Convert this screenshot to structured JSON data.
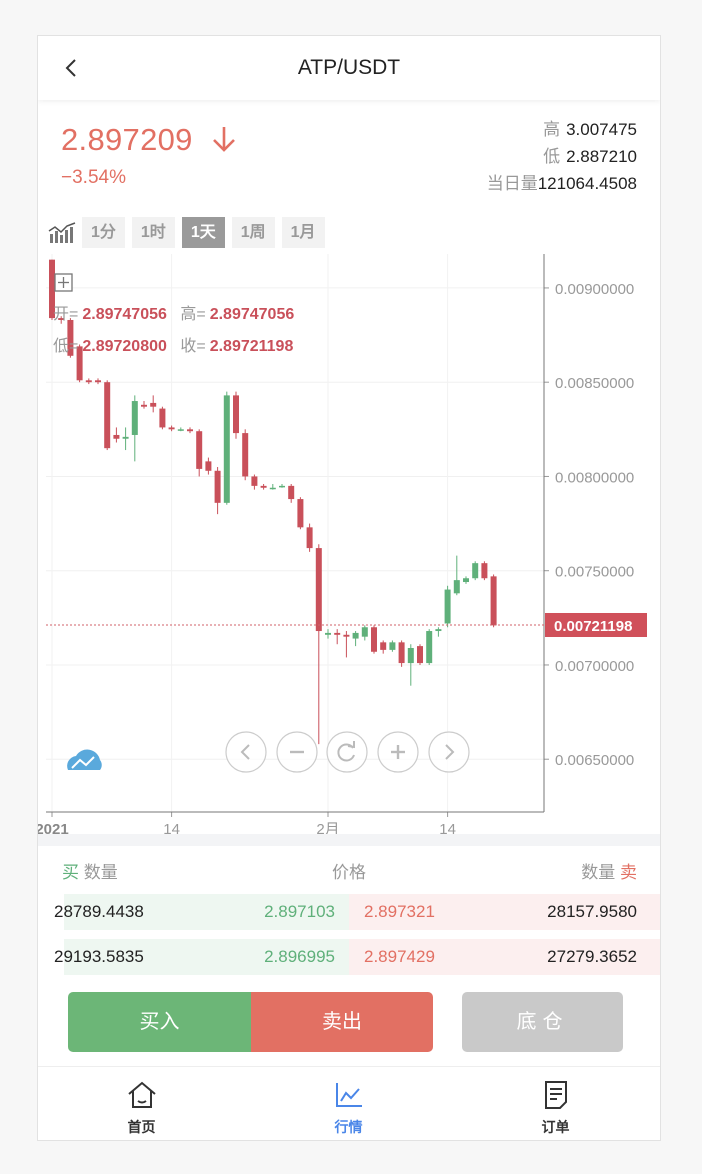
{
  "header": {
    "title": "ATP/USDT",
    "back_icon": "chevron-left-icon"
  },
  "ticker": {
    "price": "2.897209",
    "change": "−3.54%",
    "trend_icon": "arrow-down-icon",
    "high_label": "高",
    "high": "3.007475",
    "low_label": "低",
    "low": "2.887210",
    "volume_label": "当日量",
    "volume": "121064.4508"
  },
  "periods": {
    "icon": "kline-chart-icon",
    "items": [
      {
        "label": "1分",
        "active": false
      },
      {
        "label": "1时",
        "active": false
      },
      {
        "label": "1天",
        "active": true
      },
      {
        "label": "1周",
        "active": false
      },
      {
        "label": "1月",
        "active": false
      }
    ]
  },
  "chart_data": {
    "type": "candlestick",
    "ohlc_info": {
      "open_label": "开=",
      "open": "2.89747056",
      "high_label": "高=",
      "high": "2.89747056",
      "low_label": "低=",
      "low": "2.89720800",
      "close_label": "收=",
      "close": "2.89721198"
    },
    "y_ticks": [
      "0.00900000",
      "0.00850000",
      "0.00800000",
      "0.00750000",
      "0.00700000",
      "0.00650000"
    ],
    "y_range": [
      0.00622,
      0.00918
    ],
    "x_ticks": [
      {
        "label": "2021",
        "index": 0,
        "bold": true
      },
      {
        "label": "14",
        "index": 13,
        "bold": false
      },
      {
        "label": "2月",
        "index": 30,
        "bold": false
      },
      {
        "label": "14",
        "index": 43,
        "bold": false
      }
    ],
    "last_price_label": "0.00721198",
    "last_price": 0.00721198,
    "colors": {
      "up": "#5fb07a",
      "down": "#c9505a",
      "price_line": "#d0606a"
    },
    "candles": [
      {
        "o": 0.00915,
        "h": 0.00915,
        "l": 0.00883,
        "c": 0.00884
      },
      {
        "o": 0.00884,
        "h": 0.00885,
        "l": 0.00881,
        "c": 0.00883
      },
      {
        "o": 0.00883,
        "h": 0.00884,
        "l": 0.00863,
        "c": 0.00864
      },
      {
        "o": 0.00869,
        "h": 0.0087,
        "l": 0.0085,
        "c": 0.00851
      },
      {
        "o": 0.00851,
        "h": 0.00852,
        "l": 0.00849,
        "c": 0.0085
      },
      {
        "o": 0.00851,
        "h": 0.00852,
        "l": 0.00849,
        "c": 0.0085
      },
      {
        "o": 0.0085,
        "h": 0.00851,
        "l": 0.00814,
        "c": 0.00815
      },
      {
        "o": 0.00822,
        "h": 0.00826,
        "l": 0.00818,
        "c": 0.0082
      },
      {
        "o": 0.0082,
        "h": 0.00826,
        "l": 0.00814,
        "c": 0.00821
      },
      {
        "o": 0.00822,
        "h": 0.00843,
        "l": 0.00808,
        "c": 0.0084
      },
      {
        "o": 0.00838,
        "h": 0.0084,
        "l": 0.00836,
        "c": 0.00837
      },
      {
        "o": 0.00839,
        "h": 0.00843,
        "l": 0.00834,
        "c": 0.00837
      },
      {
        "o": 0.00836,
        "h": 0.00837,
        "l": 0.00825,
        "c": 0.00826
      },
      {
        "o": 0.00826,
        "h": 0.00827,
        "l": 0.00824,
        "c": 0.00825
      },
      {
        "o": 0.00825,
        "h": 0.00826,
        "l": 0.00824,
        "c": 0.00825
      },
      {
        "o": 0.00825,
        "h": 0.00826,
        "l": 0.00823,
        "c": 0.00824
      },
      {
        "o": 0.00824,
        "h": 0.00825,
        "l": 0.008,
        "c": 0.00804
      },
      {
        "o": 0.00808,
        "h": 0.0081,
        "l": 0.00801,
        "c": 0.00803
      },
      {
        "o": 0.00803,
        "h": 0.00805,
        "l": 0.0078,
        "c": 0.00786
      },
      {
        "o": 0.00786,
        "h": 0.00845,
        "l": 0.00785,
        "c": 0.00843
      },
      {
        "o": 0.00843,
        "h": 0.00845,
        "l": 0.0082,
        "c": 0.00823
      },
      {
        "o": 0.00823,
        "h": 0.00825,
        "l": 0.00798,
        "c": 0.008
      },
      {
        "o": 0.008,
        "h": 0.00801,
        "l": 0.00793,
        "c": 0.00795
      },
      {
        "o": 0.00795,
        "h": 0.00796,
        "l": 0.00793,
        "c": 0.00794
      },
      {
        "o": 0.00794,
        "h": 0.00796,
        "l": 0.00793,
        "c": 0.00794
      },
      {
        "o": 0.00795,
        "h": 0.00796,
        "l": 0.00794,
        "c": 0.00795
      },
      {
        "o": 0.00795,
        "h": 0.00796,
        "l": 0.00786,
        "c": 0.00788
      },
      {
        "o": 0.00788,
        "h": 0.00789,
        "l": 0.00772,
        "c": 0.00773
      },
      {
        "o": 0.00773,
        "h": 0.00775,
        "l": 0.0076,
        "c": 0.00762
      },
      {
        "o": 0.00762,
        "h": 0.00764,
        "l": 0.00658,
        "c": 0.00718
      },
      {
        "o": 0.00716,
        "h": 0.00719,
        "l": 0.00714,
        "c": 0.00717
      },
      {
        "o": 0.00717,
        "h": 0.00719,
        "l": 0.00711,
        "c": 0.00716
      },
      {
        "o": 0.00716,
        "h": 0.00718,
        "l": 0.00704,
        "c": 0.00715
      },
      {
        "o": 0.00714,
        "h": 0.00718,
        "l": 0.0071,
        "c": 0.00717
      },
      {
        "o": 0.00715,
        "h": 0.00721,
        "l": 0.00713,
        "c": 0.0072
      },
      {
        "o": 0.0072,
        "h": 0.00721,
        "l": 0.00706,
        "c": 0.00707
      },
      {
        "o": 0.00712,
        "h": 0.00713,
        "l": 0.00706,
        "c": 0.00708
      },
      {
        "o": 0.00708,
        "h": 0.00713,
        "l": 0.00707,
        "c": 0.00712
      },
      {
        "o": 0.00712,
        "h": 0.00713,
        "l": 0.00699,
        "c": 0.00701
      },
      {
        "o": 0.00701,
        "h": 0.00711,
        "l": 0.00689,
        "c": 0.00709
      },
      {
        "o": 0.0071,
        "h": 0.00711,
        "l": 0.007,
        "c": 0.00701
      },
      {
        "o": 0.00701,
        "h": 0.00719,
        "l": 0.007,
        "c": 0.00718
      },
      {
        "o": 0.00718,
        "h": 0.0072,
        "l": 0.00715,
        "c": 0.00719
      },
      {
        "o": 0.00722,
        "h": 0.00742,
        "l": 0.0072,
        "c": 0.0074
      },
      {
        "o": 0.00738,
        "h": 0.00758,
        "l": 0.00737,
        "c": 0.00745
      },
      {
        "o": 0.00744,
        "h": 0.00747,
        "l": 0.00743,
        "c": 0.00746
      },
      {
        "o": 0.00746,
        "h": 0.00755,
        "l": 0.00745,
        "c": 0.00754
      },
      {
        "o": 0.00754,
        "h": 0.00755,
        "l": 0.00745,
        "c": 0.00746
      },
      {
        "o": 0.00747,
        "h": 0.00748,
        "l": 0.0072,
        "c": 0.00721
      }
    ],
    "zoom_controls": [
      "prev-icon",
      "zoom-out-icon",
      "reset-icon",
      "zoom-in-icon",
      "next-icon"
    ]
  },
  "orderbook": {
    "buy_label": "买",
    "qty_label": "数量",
    "price_label": "价格",
    "qty_label_right": "数量",
    "sell_label": "卖",
    "rows": [
      {
        "bid_qty": "28789.4438",
        "bid_price": "2.897103",
        "ask_price": "2.897321",
        "ask_qty": "28157.9580"
      },
      {
        "bid_qty": "29193.5835",
        "bid_price": "2.896995",
        "ask_price": "2.897429",
        "ask_qty": "27279.3652"
      }
    ]
  },
  "actions": {
    "buy": "买入",
    "sell": "卖出",
    "position": "底仓"
  },
  "tabs": [
    {
      "label": "首页",
      "icon": "home-icon",
      "active": false
    },
    {
      "label": "行情",
      "icon": "market-chart-icon",
      "active": true
    },
    {
      "label": "订单",
      "icon": "order-list-icon",
      "active": false
    }
  ]
}
